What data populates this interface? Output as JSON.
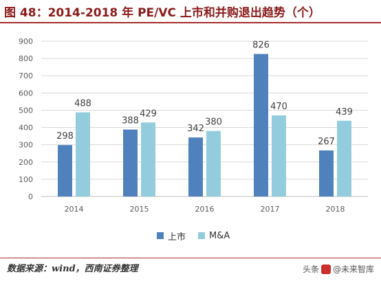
{
  "page": {
    "title": "图 48：2014-2018 年 PE/VC 上市和并购退出趋势（个）",
    "source": "数据来源：wind，西南证券整理",
    "watermark_prefix": "头条",
    "watermark_handle": "@未来智库"
  },
  "colors": {
    "title": "#8b1a1a",
    "rule": "#a52a2a",
    "ipo": "#4f81bd",
    "ma": "#93cddd",
    "grid": "#d9d9d9",
    "tick": "#595959",
    "label": "#404040"
  },
  "chart_data": {
    "type": "bar",
    "categories": [
      "2014",
      "2015",
      "2016",
      "2017",
      "2018"
    ],
    "series": [
      {
        "name": "上市",
        "values": [
          298,
          388,
          342,
          826,
          267
        ]
      },
      {
        "name": "M&A",
        "values": [
          488,
          429,
          380,
          470,
          439
        ]
      }
    ],
    "ylim": [
      0,
      900
    ],
    "yticks": [
      0,
      100,
      200,
      300,
      400,
      500,
      600,
      700,
      800,
      900
    ],
    "grid": true,
    "legend_position": "bottom",
    "title": "",
    "xlabel": "",
    "ylabel": ""
  }
}
